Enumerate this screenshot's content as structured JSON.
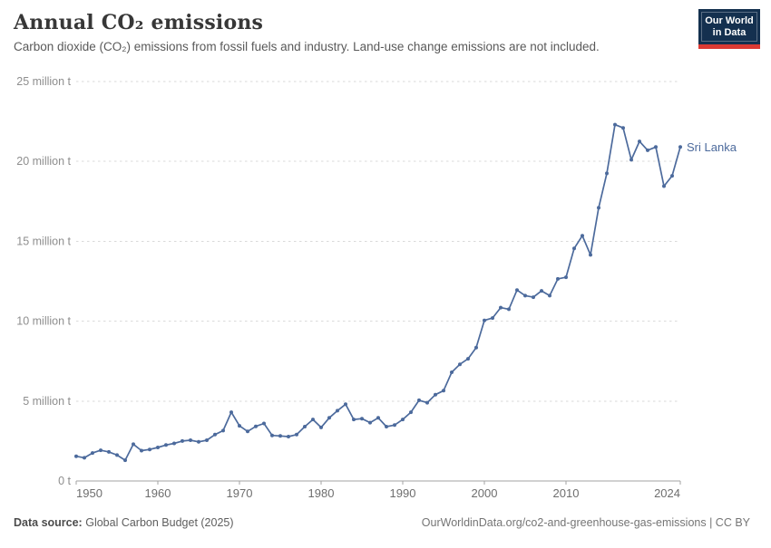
{
  "header": {
    "title": "Annual CO₂ emissions",
    "subtitle": "Carbon dioxide (CO₂) emissions from fossil fuels and industry. Land-use change emissions are not included.",
    "logo": {
      "line1": "Our World",
      "line2": "in Data",
      "bg_color": "#14304f",
      "accent_color": "#dc3a33"
    }
  },
  "chart_data": {
    "type": "line",
    "title": "Annual CO₂ emissions",
    "unit": "million t",
    "grid": true,
    "legend_position": "end-of-line-label",
    "xlim": [
      1950,
      2024
    ],
    "ylim": [
      0,
      25
    ],
    "xticks": [
      1950,
      1960,
      1970,
      1980,
      1990,
      2000,
      2010,
      2024
    ],
    "yticks": [
      0,
      5,
      10,
      15,
      20,
      25
    ],
    "ytick_labels": [
      "0 t",
      "5 million t",
      "10 million t",
      "15 million t",
      "20 million t",
      "25 million t"
    ],
    "x": [
      1950,
      1951,
      1952,
      1953,
      1954,
      1955,
      1956,
      1957,
      1958,
      1959,
      1960,
      1961,
      1962,
      1963,
      1964,
      1965,
      1966,
      1967,
      1968,
      1969,
      1970,
      1971,
      1972,
      1973,
      1974,
      1975,
      1976,
      1977,
      1978,
      1979,
      1980,
      1981,
      1982,
      1983,
      1984,
      1985,
      1986,
      1987,
      1988,
      1989,
      1990,
      1991,
      1992,
      1993,
      1994,
      1995,
      1996,
      1997,
      1998,
      1999,
      2000,
      2001,
      2002,
      2003,
      2004,
      2005,
      2006,
      2007,
      2008,
      2009,
      2010,
      2011,
      2012,
      2013,
      2014,
      2015,
      2016,
      2017,
      2018,
      2019,
      2020,
      2021,
      2022,
      2023,
      2024
    ],
    "series": [
      {
        "name": "Sri Lanka",
        "color": "#4C6A9C",
        "values": [
          1.55,
          1.45,
          1.75,
          1.92,
          1.82,
          1.62,
          1.3,
          2.3,
          1.9,
          1.97,
          2.1,
          2.25,
          2.35,
          2.5,
          2.55,
          2.45,
          2.55,
          2.9,
          3.15,
          4.3,
          3.45,
          3.1,
          3.42,
          3.6,
          2.85,
          2.82,
          2.78,
          2.9,
          3.4,
          3.85,
          3.35,
          3.95,
          4.4,
          4.8,
          3.85,
          3.9,
          3.65,
          3.95,
          3.4,
          3.5,
          3.85,
          4.3,
          5.05,
          4.9,
          5.4,
          5.65,
          6.8,
          7.3,
          7.65,
          8.35,
          10.05,
          10.2,
          10.85,
          10.75,
          11.95,
          11.6,
          11.5,
          11.9,
          11.6,
          12.65,
          12.75,
          14.55,
          15.35,
          14.15,
          17.1,
          19.25,
          22.3,
          22.1,
          20.1,
          21.25,
          20.7,
          20.9,
          18.45,
          19.1,
          20.9
        ]
      }
    ],
    "grid_color": "#dadada",
    "axis_color": "#a3a3a3"
  },
  "footer": {
    "source_label": "Data source:",
    "source": "Global Carbon Budget (2025)",
    "link": "OurWorldinData.org/co2-and-greenhouse-gas-emissions | CC BY"
  }
}
